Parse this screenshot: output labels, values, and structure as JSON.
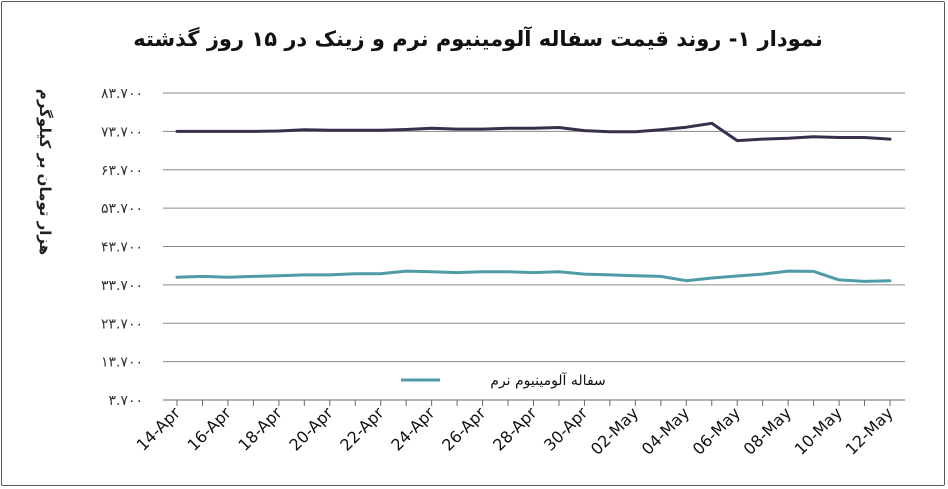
{
  "chart_data": {
    "type": "line",
    "title": "نمودار ۱- روند قیمت سفاله آلومینیوم نرم و زینک در ۱۵ روز گذشته",
    "ylabel": "هزار تومان بر کیلوگرم",
    "xlabel": "",
    "ylim": [
      3700,
      83700
    ],
    "yticks": [
      3700,
      13700,
      23700,
      33700,
      43700,
      53700,
      63700,
      73700,
      83700
    ],
    "ytick_labels": [
      "۳.۷۰۰",
      "۱۳.۷۰۰",
      "۲۳.۷۰۰",
      "۳۳.۷۰۰",
      "۴۳.۷۰۰",
      "۵۳.۷۰۰",
      "۶۳.۷۰۰",
      "۷۳.۷۰۰",
      "۸۳.۷۰۰"
    ],
    "x": [
      "14-Apr",
      "15-Apr",
      "16-Apr",
      "17-Apr",
      "18-Apr",
      "19-Apr",
      "20-Apr",
      "21-Apr",
      "22-Apr",
      "23-Apr",
      "24-Apr",
      "25-Apr",
      "26-Apr",
      "27-Apr",
      "28-Apr",
      "29-Apr",
      "30-Apr",
      "01-May",
      "02-May",
      "03-May",
      "04-May",
      "05-May",
      "06-May",
      "07-May",
      "08-May",
      "09-May",
      "10-May",
      "11-May",
      "12-May"
    ],
    "x_tick_labels": [
      "14-Apr",
      "16-Apr",
      "18-Apr",
      "20-Apr",
      "22-Apr",
      "24-Apr",
      "26-Apr",
      "28-Apr",
      "30-Apr",
      "02-May",
      "04-May",
      "06-May",
      "08-May",
      "10-May",
      "12-May"
    ],
    "grid": true,
    "legend_position": "bottom-center",
    "series": [
      {
        "values": [
          73700,
          73700,
          73700,
          73700,
          73800,
          74100,
          74000,
          74000,
          74000,
          74200,
          74500,
          74300,
          74300,
          74500,
          74500,
          74700,
          73900,
          73600,
          73600,
          74100,
          74800,
          75800,
          71300,
          71700,
          71900,
          72300,
          72100,
          72100,
          71700
        ],
        "color": "#3a2f4a"
      },
      {
        "name": "سفاله آلومینیوم نرم",
        "values": [
          35700,
          35900,
          35700,
          35900,
          36100,
          36300,
          36300,
          36600,
          36600,
          37300,
          37100,
          36900,
          37100,
          37100,
          36900,
          37100,
          36500,
          36300,
          36100,
          35900,
          34800,
          35500,
          36000,
          36500,
          37300,
          37200,
          35000,
          34600,
          34800
        ],
        "color": "#4f9ca8"
      }
    ],
    "legend": [
      "سفاله آلومینیوم نرم"
    ]
  }
}
